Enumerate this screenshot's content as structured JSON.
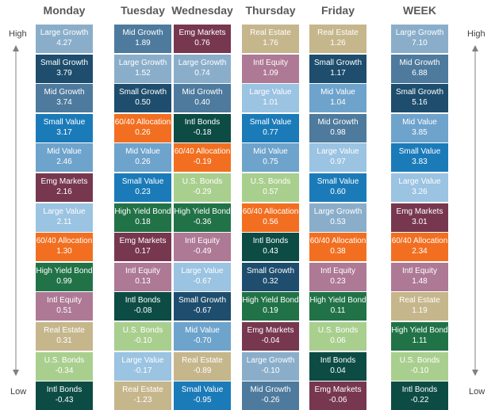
{
  "labels": {
    "high": "High",
    "low": "Low"
  },
  "palette": {
    "Large Growth": "#8aaeca",
    "Mid Growth": "#4e7a9d",
    "Small Growth": "#1e4d6d",
    "Large Value": "#9bc3e2",
    "Mid Value": "#6ea3cc",
    "Small Value": "#1b7bb9",
    "Emg Markets": "#77374f",
    "Intl Equity": "#ad7994",
    "High Yield Bond": "#217347",
    "Intl Bonds": "#0c4c44",
    "U.S. Bonds": "#a9cf8e",
    "Real Estate": "#c6b68c",
    "60/40 Allocation": "#f26f21"
  },
  "chart_data": {
    "type": "table",
    "columns": [
      {
        "day": "Monday",
        "entries": [
          {
            "name": "Large Growth",
            "value": "4.27"
          },
          {
            "name": "Small Growth",
            "value": "3.79"
          },
          {
            "name": "Mid Growth",
            "value": "3.74"
          },
          {
            "name": "Small Value",
            "value": "3.17"
          },
          {
            "name": "Mid Value",
            "value": "2.46"
          },
          {
            "name": "Emg Markets",
            "value": "2.16"
          },
          {
            "name": "Large Value",
            "value": "2.11"
          },
          {
            "name": "60/40 Allocation",
            "value": "1.30"
          },
          {
            "name": "High Yield Bond",
            "value": "0.99"
          },
          {
            "name": "Intl Equity",
            "value": "0.51"
          },
          {
            "name": "Real Estate",
            "value": "0.31"
          },
          {
            "name": "U.S. Bonds",
            "value": "-0.34"
          },
          {
            "name": "Intl Bonds",
            "value": "-0.43"
          }
        ]
      },
      {
        "day": "Tuesday",
        "entries": [
          {
            "name": "Mid Growth",
            "value": "1.89"
          },
          {
            "name": "Large Growth",
            "value": "1.52"
          },
          {
            "name": "Small Growth",
            "value": "0.50"
          },
          {
            "name": "60/40 Allocation",
            "value": "0.26"
          },
          {
            "name": "Mid Value",
            "value": "0.26"
          },
          {
            "name": "Small Value",
            "value": "0.23"
          },
          {
            "name": "High Yield Bond",
            "value": "0.18"
          },
          {
            "name": "Emg Markets",
            "value": "0.17"
          },
          {
            "name": "Intl Equity",
            "value": "0.13"
          },
          {
            "name": "Intl Bonds",
            "value": "-0.08"
          },
          {
            "name": "U.S. Bonds",
            "value": "-0.10"
          },
          {
            "name": "Large Value",
            "value": "-0.17"
          },
          {
            "name": "Real Estate",
            "value": "-1.23"
          }
        ]
      },
      {
        "day": "Wednesday",
        "entries": [
          {
            "name": "Emg Markets",
            "value": "0.76"
          },
          {
            "name": "Large Growth",
            "value": "0.74"
          },
          {
            "name": "Mid Growth",
            "value": "0.40"
          },
          {
            "name": "Intl Bonds",
            "value": "-0.18"
          },
          {
            "name": "60/40 Allocation",
            "value": "-0.19"
          },
          {
            "name": "U.S. Bonds",
            "value": "-0.29"
          },
          {
            "name": "High Yield Bond",
            "value": "-0.36"
          },
          {
            "name": "Intl Equity",
            "value": "-0.49"
          },
          {
            "name": "Large Value",
            "value": "-0.67"
          },
          {
            "name": "Small Growth",
            "value": "-0.67"
          },
          {
            "name": "Mid Value",
            "value": "-0.70"
          },
          {
            "name": "Real Estate",
            "value": "-0.89"
          },
          {
            "name": "Small Value",
            "value": "-0.95"
          }
        ]
      },
      {
        "day": "Thursday",
        "entries": [
          {
            "name": "Real Estate",
            "value": "1.76"
          },
          {
            "name": "Intl Equity",
            "value": "1.09"
          },
          {
            "name": "Large Value",
            "value": "1.01"
          },
          {
            "name": "Small Value",
            "value": "0.77"
          },
          {
            "name": "Mid Value",
            "value": "0.75"
          },
          {
            "name": "U.S. Bonds",
            "value": "0.57"
          },
          {
            "name": "60/40 Allocation",
            "value": "0.56"
          },
          {
            "name": "Intl Bonds",
            "value": "0.43"
          },
          {
            "name": "Small Growth",
            "value": "0.32"
          },
          {
            "name": "High Yield Bond",
            "value": "0.19"
          },
          {
            "name": "Emg Markets",
            "value": "-0.04"
          },
          {
            "name": "Large Growth",
            "value": "-0.10"
          },
          {
            "name": "Mid Growth",
            "value": "-0.26"
          }
        ]
      },
      {
        "day": "Friday",
        "entries": [
          {
            "name": "Real Estate",
            "value": "1.26"
          },
          {
            "name": "Small Growth",
            "value": "1.17"
          },
          {
            "name": "Mid Value",
            "value": "1.04"
          },
          {
            "name": "Mid Growth",
            "value": "0.98"
          },
          {
            "name": "Large Value",
            "value": "0.97"
          },
          {
            "name": "Small Value",
            "value": "0.60"
          },
          {
            "name": "Large Growth",
            "value": "0.53"
          },
          {
            "name": "60/40 Allocation",
            "value": "0.38"
          },
          {
            "name": "Intl Equity",
            "value": "0.23"
          },
          {
            "name": "High Yield Bond",
            "value": "0.11"
          },
          {
            "name": "U.S. Bonds",
            "value": "0.06"
          },
          {
            "name": "Intl Bonds",
            "value": "0.04"
          },
          {
            "name": "Emg Markets",
            "value": "-0.06"
          }
        ]
      },
      {
        "day": "WEEK",
        "entries": [
          {
            "name": "Large Growth",
            "value": "7.10"
          },
          {
            "name": "Mid Growth",
            "value": "6.88"
          },
          {
            "name": "Small Growth",
            "value": "5.16"
          },
          {
            "name": "Mid Value",
            "value": "3.85"
          },
          {
            "name": "Small Value",
            "value": "3.83"
          },
          {
            "name": "Large Value",
            "value": "3.26"
          },
          {
            "name": "Emg Markets",
            "value": "3.01"
          },
          {
            "name": "60/40 Allocation",
            "value": "2.34"
          },
          {
            "name": "Intl Equity",
            "value": "1.48"
          },
          {
            "name": "Real Estate",
            "value": "1.19"
          },
          {
            "name": "High Yield Bond",
            "value": "1.11"
          },
          {
            "name": "U.S. Bonds",
            "value": "-0.10"
          },
          {
            "name": "Intl Bonds",
            "value": "-0.22"
          }
        ]
      }
    ]
  }
}
